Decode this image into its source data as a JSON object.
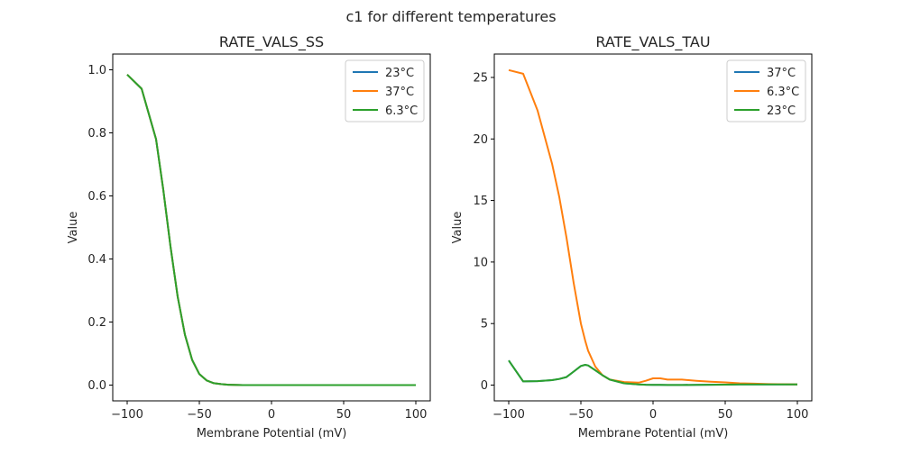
{
  "figure": {
    "suptitle": "c1 for different temperatures"
  },
  "chart_data": [
    {
      "type": "line",
      "title": "RATE_VALS_SS",
      "xlabel": "Membrane Potential (mV)",
      "ylabel": "Value",
      "xlim": [
        -110,
        110
      ],
      "ylim": [
        -0.05,
        1.05
      ],
      "xticks": [
        -100,
        -50,
        0,
        50,
        100
      ],
      "xtick_labels": [
        "−100",
        "−50",
        "0",
        "50",
        "100"
      ],
      "yticks": [
        0.0,
        0.2,
        0.4,
        0.6,
        0.8,
        1.0
      ],
      "ytick_labels": [
        "0.0",
        "0.2",
        "0.4",
        "0.6",
        "0.8",
        "1.0"
      ],
      "legend_position": "top-right",
      "x": [
        -100,
        -90,
        -80,
        -75,
        -70,
        -65,
        -60,
        -55,
        -50,
        -45,
        -40,
        -35,
        -30,
        -20,
        -10,
        0,
        20,
        40,
        60,
        80,
        100
      ],
      "series": [
        {
          "name": "23°C",
          "color": "#1f77b4",
          "values": [
            0.985,
            0.94,
            0.78,
            0.62,
            0.44,
            0.28,
            0.16,
            0.08,
            0.035,
            0.015,
            0.006,
            0.003,
            0.001,
            0.0,
            0.0,
            0.0,
            0.0,
            0.0,
            0.0,
            0.0,
            0.0
          ]
        },
        {
          "name": "37°C",
          "color": "#ff7f0e",
          "values": [
            0.985,
            0.94,
            0.78,
            0.62,
            0.44,
            0.28,
            0.16,
            0.08,
            0.035,
            0.015,
            0.006,
            0.003,
            0.001,
            0.0,
            0.0,
            0.0,
            0.0,
            0.0,
            0.0,
            0.0,
            0.0
          ]
        },
        {
          "name": "6.3°C",
          "color": "#2ca02c",
          "values": [
            0.985,
            0.94,
            0.78,
            0.62,
            0.44,
            0.28,
            0.16,
            0.08,
            0.035,
            0.015,
            0.006,
            0.003,
            0.001,
            0.0,
            0.0,
            0.0,
            0.0,
            0.0,
            0.0,
            0.0,
            0.0
          ]
        }
      ]
    },
    {
      "type": "line",
      "title": "RATE_VALS_TAU",
      "xlabel": "Membrane Potential (mV)",
      "ylabel": "Value",
      "xlim": [
        -110,
        110
      ],
      "ylim": [
        -1.28,
        26.9
      ],
      "xticks": [
        -100,
        -50,
        0,
        50,
        100
      ],
      "xtick_labels": [
        "−100",
        "−50",
        "0",
        "50",
        "100"
      ],
      "yticks": [
        0,
        5,
        10,
        15,
        20,
        25
      ],
      "ytick_labels": [
        "0",
        "5",
        "10",
        "15",
        "20",
        "25"
      ],
      "legend_position": "top-right",
      "x": [
        -100,
        -90,
        -80,
        -70,
        -65,
        -60,
        -55,
        -50,
        -47,
        -45,
        -40,
        -35,
        -30,
        -20,
        -10,
        -5,
        0,
        5,
        10,
        20,
        30,
        40,
        50,
        60,
        70,
        80,
        100
      ],
      "series": [
        {
          "name": "37°C",
          "color": "#1f77b4",
          "values": [
            2.0,
            0.3,
            0.32,
            0.4,
            0.5,
            0.65,
            1.1,
            1.55,
            1.65,
            1.6,
            1.2,
            0.8,
            0.45,
            0.15,
            0.06,
            0.03,
            0.02,
            0.02,
            0.01,
            0.01,
            0.02,
            0.03,
            0.04,
            0.05,
            0.05,
            0.05,
            0.05
          ]
        },
        {
          "name": "6.3°C",
          "color": "#ff7f0e",
          "values": [
            25.6,
            25.3,
            22.3,
            18.0,
            15.3,
            12.0,
            8.3,
            5.0,
            3.6,
            2.8,
            1.5,
            0.8,
            0.45,
            0.25,
            0.2,
            0.35,
            0.55,
            0.55,
            0.45,
            0.45,
            0.35,
            0.28,
            0.22,
            0.15,
            0.12,
            0.08,
            0.05
          ]
        },
        {
          "name": "23°C",
          "color": "#2ca02c",
          "values": [
            2.0,
            0.3,
            0.32,
            0.4,
            0.5,
            0.65,
            1.1,
            1.55,
            1.65,
            1.6,
            1.2,
            0.8,
            0.45,
            0.15,
            0.06,
            0.03,
            0.02,
            0.02,
            0.01,
            0.01,
            0.02,
            0.03,
            0.04,
            0.05,
            0.05,
            0.05,
            0.05
          ]
        }
      ]
    }
  ]
}
